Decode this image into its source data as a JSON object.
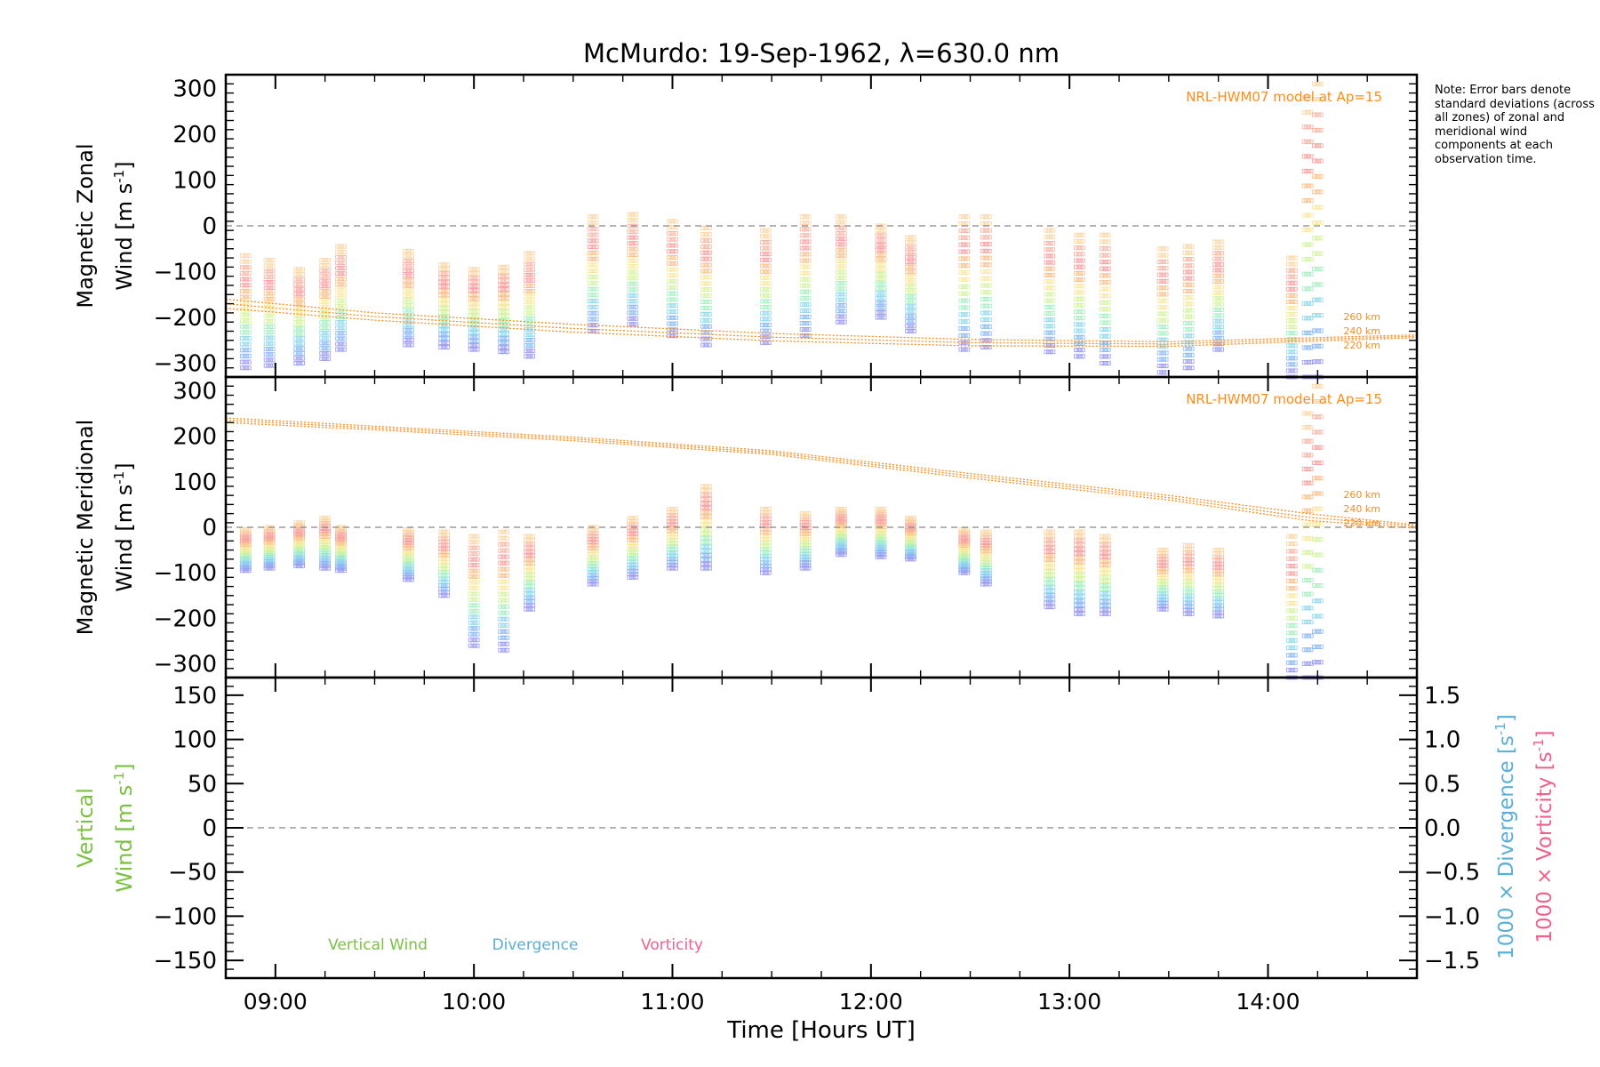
{
  "title": "McMurdo: 19-Sep-1962, λ=630.0 nm",
  "note": "Note: Error bars denote standard deviations (across all zones) of zonal and meridional wind components at each observation time.",
  "colors": {
    "model": "#ff8c1a",
    "vertical": "#7bc043",
    "divergence": "#5aaed8",
    "vorticity": "#f0608c",
    "zero_line": "#888888",
    "axes": "#000000"
  },
  "chart_data": [
    {
      "panel": "zonal",
      "type": "scatter",
      "ylabel_line1": "Magnetic Zonal",
      "ylabel_line2": "Wind [m s",
      "ylabel_sup": "-1",
      "ylabel_close": "]",
      "ylim": [
        -330,
        330
      ],
      "yticks": [
        -300,
        -200,
        -100,
        0,
        100,
        200,
        300
      ],
      "ytick_labels": [
        "−300",
        "−200",
        "−100",
        "0",
        "100",
        "200",
        "300"
      ],
      "zero_line": true,
      "model_label": "NRL-HWM07 model at Ap=15",
      "model_curves": [
        {
          "name": "260 km",
          "x": [
            8.75,
            9.5,
            10.5,
            11.5,
            12.5,
            13.5,
            14.75
          ],
          "y": [
            -160,
            -190,
            -215,
            -235,
            -248,
            -253,
            -238
          ]
        },
        {
          "name": "240 km",
          "x": [
            8.75,
            9.5,
            10.5,
            11.5,
            12.5,
            13.5,
            14.75
          ],
          "y": [
            -170,
            -198,
            -224,
            -243,
            -255,
            -258,
            -241
          ]
        },
        {
          "name": "220 km",
          "x": [
            8.75,
            9.5,
            10.5,
            11.5,
            12.5,
            13.5,
            14.75
          ],
          "y": [
            -180,
            -206,
            -232,
            -251,
            -262,
            -263,
            -244
          ]
        }
      ],
      "observations": [
        {
          "x": 8.85,
          "min": -310,
          "max": -65
        },
        {
          "x": 8.97,
          "min": -305,
          "max": -75
        },
        {
          "x": 9.12,
          "min": -300,
          "max": -95
        },
        {
          "x": 9.25,
          "min": -290,
          "max": -75
        },
        {
          "x": 9.33,
          "min": -270,
          "max": -45
        },
        {
          "x": 9.67,
          "min": -260,
          "max": -55
        },
        {
          "x": 9.85,
          "min": -265,
          "max": -85
        },
        {
          "x": 10.0,
          "min": -270,
          "max": -95
        },
        {
          "x": 10.15,
          "min": -275,
          "max": -90
        },
        {
          "x": 10.28,
          "min": -285,
          "max": -60
        },
        {
          "x": 10.6,
          "min": -230,
          "max": 20
        },
        {
          "x": 10.8,
          "min": -215,
          "max": 25
        },
        {
          "x": 11.0,
          "min": -240,
          "max": 10
        },
        {
          "x": 11.17,
          "min": -260,
          "max": -5
        },
        {
          "x": 11.47,
          "min": -255,
          "max": -10
        },
        {
          "x": 11.67,
          "min": -240,
          "max": 20
        },
        {
          "x": 11.85,
          "min": -210,
          "max": 20
        },
        {
          "x": 12.05,
          "min": -200,
          "max": 0
        },
        {
          "x": 12.2,
          "min": -230,
          "max": -25
        },
        {
          "x": 12.47,
          "min": -270,
          "max": 20
        },
        {
          "x": 12.58,
          "min": -265,
          "max": 20
        },
        {
          "x": 12.9,
          "min": -275,
          "max": -10
        },
        {
          "x": 13.05,
          "min": -285,
          "max": -20
        },
        {
          "x": 13.18,
          "min": -300,
          "max": -20
        },
        {
          "x": 13.47,
          "min": -320,
          "max": -50
        },
        {
          "x": 13.6,
          "min": -310,
          "max": -45
        },
        {
          "x": 13.75,
          "min": -270,
          "max": -35
        },
        {
          "x": 14.12,
          "min": -330,
          "max": -70
        },
        {
          "x": 14.2,
          "min": -330,
          "max": 280
        },
        {
          "x": 14.25,
          "min": -330,
          "max": 310
        }
      ]
    },
    {
      "panel": "meridional",
      "type": "scatter",
      "ylabel_line1": "Magnetic Meridional",
      "ylabel_line2": "Wind [m s",
      "ylabel_sup": "-1",
      "ylabel_close": "]",
      "ylim": [
        -330,
        330
      ],
      "yticks": [
        -300,
        -200,
        -100,
        0,
        100,
        200,
        300
      ],
      "ytick_labels": [
        "−300",
        "−200",
        "−100",
        "0",
        "100",
        "200",
        "300"
      ],
      "zero_line": true,
      "model_label": "NRL-HWM07 model at Ap=15",
      "model_curves": [
        {
          "name": "260 km",
          "x": [
            8.75,
            9.5,
            10.5,
            11.5,
            12.5,
            13.5,
            14.2,
            14.75
          ],
          "y": [
            240,
            222,
            198,
            168,
            118,
            70,
            30,
            5
          ]
        },
        {
          "name": "240 km",
          "x": [
            8.75,
            9.5,
            10.5,
            11.5,
            12.5,
            13.5,
            14.2,
            14.75
          ],
          "y": [
            235,
            218,
            194,
            164,
            113,
            65,
            22,
            2
          ]
        },
        {
          "name": "220 km",
          "x": [
            8.75,
            9.5,
            10.5,
            11.5,
            12.5,
            13.5,
            14.2,
            14.75
          ],
          "y": [
            230,
            214,
            190,
            160,
            108,
            60,
            15,
            -2
          ]
        }
      ],
      "observations": [
        {
          "x": 8.85,
          "min": -95,
          "max": -5
        },
        {
          "x": 8.97,
          "min": -90,
          "max": 0
        },
        {
          "x": 9.12,
          "min": -85,
          "max": 10
        },
        {
          "x": 9.25,
          "min": -90,
          "max": 20
        },
        {
          "x": 9.33,
          "min": -95,
          "max": 0
        },
        {
          "x": 9.67,
          "min": -115,
          "max": -5
        },
        {
          "x": 9.85,
          "min": -150,
          "max": -10
        },
        {
          "x": 10.0,
          "min": -260,
          "max": -20
        },
        {
          "x": 10.15,
          "min": -270,
          "max": -10
        },
        {
          "x": 10.28,
          "min": -180,
          "max": -20
        },
        {
          "x": 10.6,
          "min": -125,
          "max": 0
        },
        {
          "x": 10.8,
          "min": -110,
          "max": 20
        },
        {
          "x": 11.0,
          "min": -90,
          "max": 40
        },
        {
          "x": 11.17,
          "min": -90,
          "max": 90
        },
        {
          "x": 11.47,
          "min": -100,
          "max": 40
        },
        {
          "x": 11.67,
          "min": -90,
          "max": 30
        },
        {
          "x": 11.85,
          "min": -60,
          "max": 40
        },
        {
          "x": 12.05,
          "min": -65,
          "max": 40
        },
        {
          "x": 12.2,
          "min": -70,
          "max": 20
        },
        {
          "x": 12.47,
          "min": -100,
          "max": -5
        },
        {
          "x": 12.58,
          "min": -125,
          "max": -10
        },
        {
          "x": 12.9,
          "min": -175,
          "max": -10
        },
        {
          "x": 13.05,
          "min": -190,
          "max": -10
        },
        {
          "x": 13.18,
          "min": -190,
          "max": -20
        },
        {
          "x": 13.47,
          "min": -180,
          "max": -50
        },
        {
          "x": 13.6,
          "min": -190,
          "max": -40
        },
        {
          "x": 13.75,
          "min": -195,
          "max": -50
        },
        {
          "x": 14.12,
          "min": -330,
          "max": -20
        },
        {
          "x": 14.2,
          "min": -330,
          "max": 250
        },
        {
          "x": 14.25,
          "min": -330,
          "max": 310
        }
      ]
    },
    {
      "panel": "vertical",
      "type": "line",
      "ylabel_line1": "Vertical",
      "ylabel_line2": "Wind [m s",
      "ylabel_sup": "-1",
      "ylabel_close": "]",
      "ylim": [
        -170,
        170
      ],
      "yticks": [
        -150,
        -100,
        -50,
        0,
        50,
        100,
        150
      ],
      "ytick_labels": [
        "−150",
        "−100",
        "−50",
        "0",
        "50",
        "100",
        "150"
      ],
      "zero_line": true,
      "y2lim": [
        -1.7,
        1.7
      ],
      "y2ticks": [
        -1.5,
        -1.0,
        -0.5,
        0.0,
        0.5,
        1.0,
        1.5
      ],
      "y2tick_labels": [
        "−1.5",
        "−1.0",
        "−0.5",
        "0.0",
        "0.5",
        "1.0",
        "1.5"
      ],
      "y2label_div": "1000 × Divergence [s",
      "y2label_vor": "1000 × Vorticity [s",
      "y2label_sup": "-1",
      "y2label_close": "]",
      "legend": [
        "Vertical Wind",
        "Divergence",
        "Vorticity"
      ],
      "legend_placement": "bottom-left"
    }
  ],
  "xaxis": {
    "xlim": [
      8.75,
      14.75
    ],
    "xlabel": "Time [Hours UT]",
    "xticks": [
      9,
      10,
      11,
      12,
      13,
      14
    ],
    "xtick_labels": [
      "09:00",
      "10:00",
      "11:00",
      "12:00",
      "13:00",
      "14:00"
    ]
  }
}
